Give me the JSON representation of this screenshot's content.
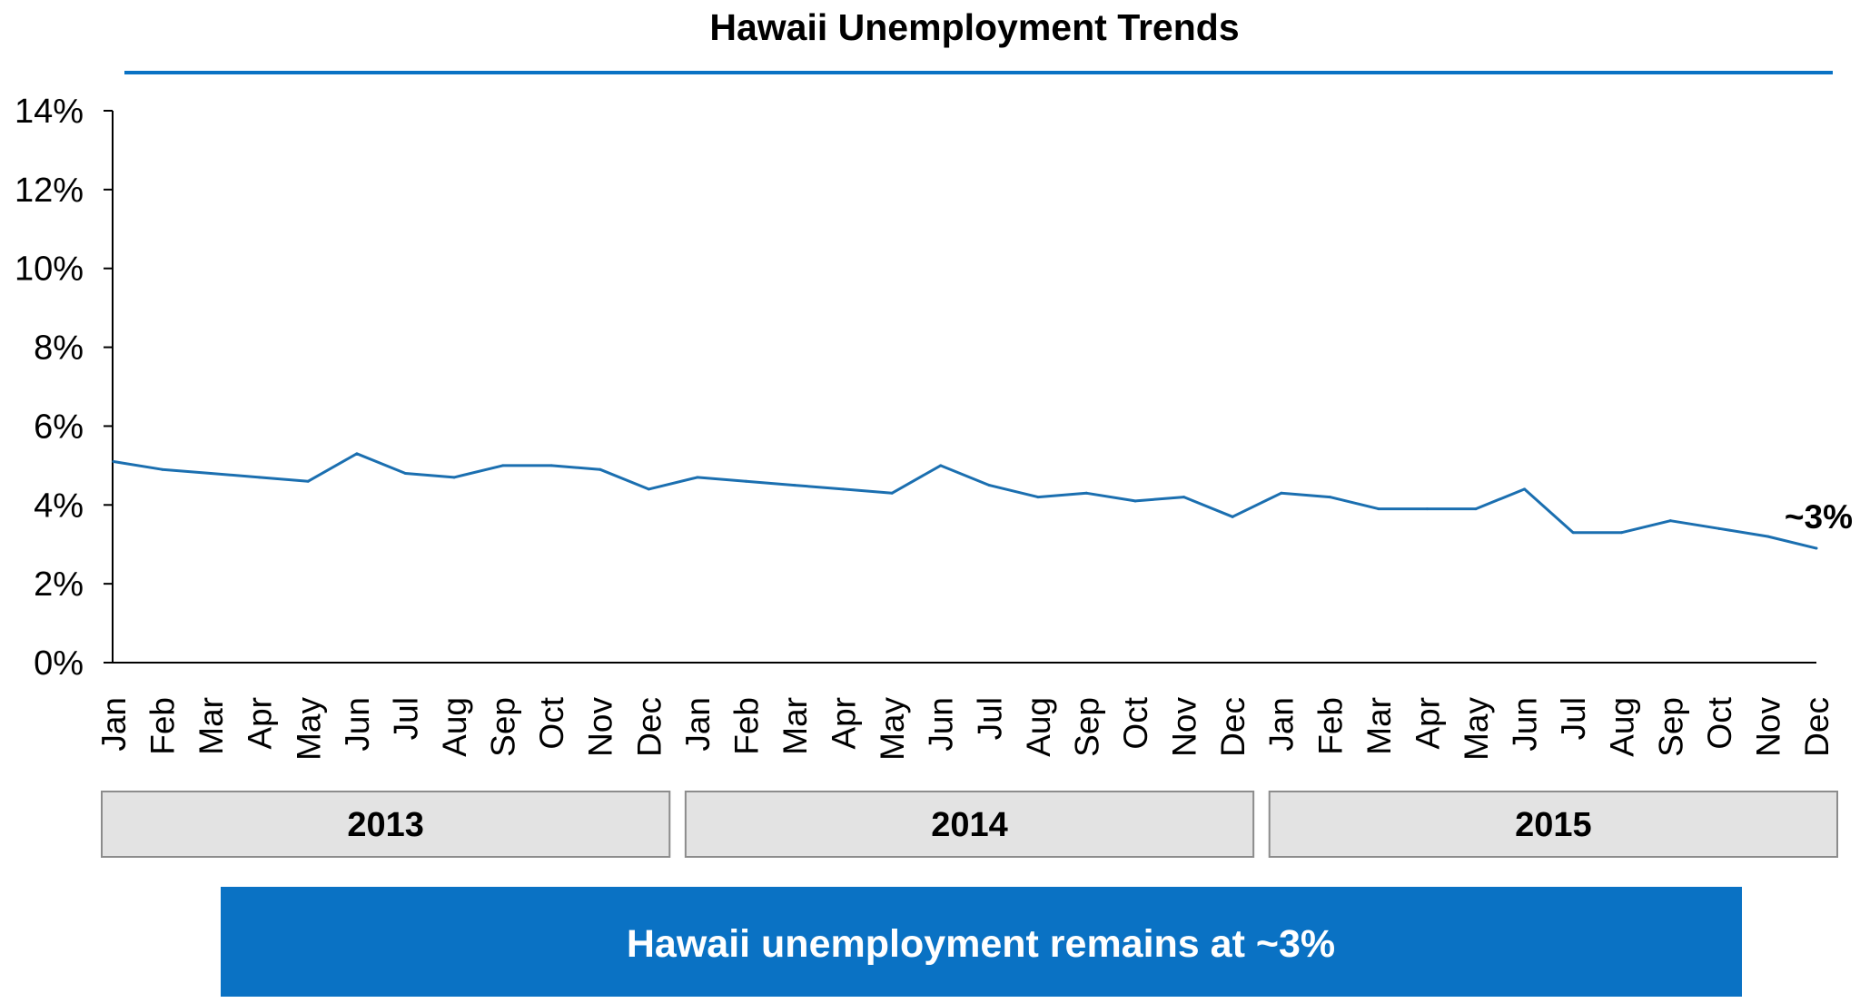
{
  "colors": {
    "accent": "#0a72c4",
    "line": "#1b6fb0",
    "year_box_fill": "#e3e3e3",
    "year_box_stroke": "#8c8c8c",
    "axis": "#000000"
  },
  "chart_data": {
    "type": "line",
    "title": "Hawaii Unemployment Trends",
    "xlabel": "",
    "ylabel": "",
    "ylim": [
      0,
      14
    ],
    "y_ticks": [
      0,
      2,
      4,
      6,
      8,
      10,
      12,
      14
    ],
    "y_tick_labels": [
      "0%",
      "2%",
      "4%",
      "6%",
      "8%",
      "10%",
      "12%",
      "14%"
    ],
    "grid": false,
    "categories": [
      "Jan",
      "Feb",
      "Mar",
      "Apr",
      "May",
      "Jun",
      "Jul",
      "Aug",
      "Sep",
      "Oct",
      "Nov",
      "Dec",
      "Jan",
      "Feb",
      "Mar",
      "Apr",
      "May",
      "Jun",
      "Jul",
      "Aug",
      "Sep",
      "Oct",
      "Nov",
      "Dec",
      "Jan",
      "Feb",
      "Mar",
      "Apr",
      "May",
      "Jun",
      "Jul",
      "Aug",
      "Sep",
      "Oct",
      "Nov",
      "Dec"
    ],
    "year_groups": [
      {
        "label": "2013",
        "start": 0,
        "end": 11
      },
      {
        "label": "2014",
        "start": 12,
        "end": 23
      },
      {
        "label": "2015",
        "start": 24,
        "end": 35
      }
    ],
    "series": [
      {
        "values": [
          5.1,
          4.9,
          4.8,
          4.7,
          4.6,
          5.3,
          4.8,
          4.7,
          5.0,
          5.0,
          4.9,
          4.4,
          4.7,
          4.6,
          4.5,
          4.4,
          4.3,
          5.0,
          4.5,
          4.2,
          4.3,
          4.1,
          4.2,
          3.7,
          4.3,
          4.2,
          3.9,
          3.9,
          3.9,
          4.4,
          3.3,
          3.3,
          3.6,
          3.4,
          3.2,
          2.9
        ]
      }
    ],
    "annotations": [
      {
        "text": "~3%",
        "point_index": 35
      }
    ]
  },
  "banner": {
    "text": "Hawaii unemployment remains at ~3%"
  }
}
